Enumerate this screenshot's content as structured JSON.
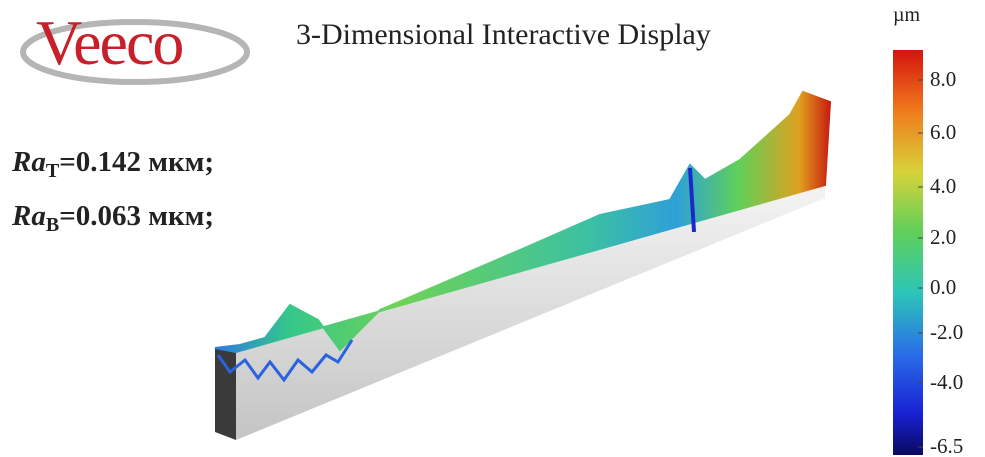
{
  "header": {
    "logo": "Veeco",
    "title": "3-Dimensional Interactive Display"
  },
  "roughness": [
    {
      "symbol": "Ra",
      "subscript": "T",
      "value": "=0.142 мкм;"
    },
    {
      "symbol": "Ra",
      "subscript": "B",
      "value": "=0.063 мкм;"
    }
  ],
  "colorbar": {
    "unit": "µm",
    "ticks": [
      "8.0",
      "6.0",
      "4.0",
      "2.0",
      "0.0",
      "-2.0",
      "-4.0",
      "-6.5"
    ]
  }
}
